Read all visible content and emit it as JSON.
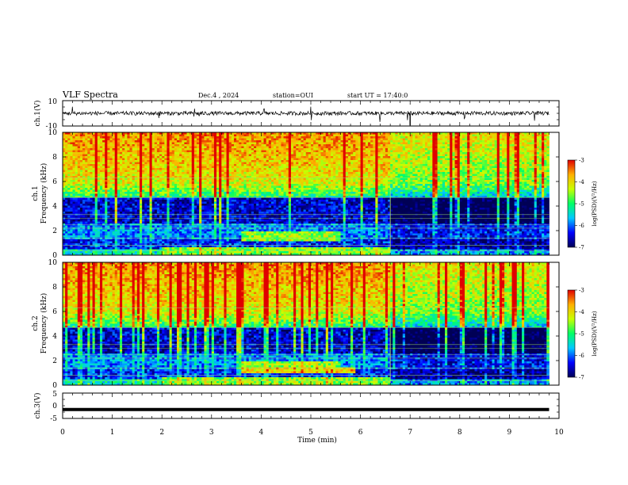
{
  "header": {
    "title": "VLF Spectra",
    "date": "Dec.4 , 2024",
    "station": "station=OUI",
    "start": "start UT = 17:40:0"
  },
  "panels": {
    "ch1_wave": {
      "ylabel": "ch.1(V)",
      "ticks": [
        "10",
        "-10"
      ]
    },
    "ch1_spec": {
      "ylabel_line1": "ch.1",
      "ylabel_line2": "Frequency (kHz)",
      "yticks": [
        "0",
        "2",
        "4",
        "6",
        "8",
        "10"
      ]
    },
    "ch2_spec": {
      "ylabel_line1": "ch.2",
      "ylabel_line2": "Frequency (kHz)",
      "yticks": [
        "0",
        "2",
        "4",
        "6",
        "8",
        "10"
      ]
    },
    "ch3_wave": {
      "ylabel": "ch.3(V)",
      "ticks": [
        "5",
        "0",
        "-5"
      ]
    },
    "xlabel": "Time (min)",
    "xticks": [
      "0",
      "1",
      "2",
      "3",
      "4",
      "5",
      "6",
      "7",
      "8",
      "9",
      "10"
    ]
  },
  "colorbar": {
    "label": "log(PSD)(V²/Hz)",
    "ticks": [
      "-3",
      "-4",
      "-5",
      "-6",
      "-7"
    ],
    "colors": [
      "#000055",
      "#0000ff",
      "#00c8ff",
      "#00ff66",
      "#c8ff00",
      "#ffb000",
      "#e00000",
      "#ffffff"
    ]
  },
  "chart_data": [
    {
      "type": "line",
      "title": "VLF Spectra",
      "ylabel": "ch.1(V)",
      "xlabel": "Time (min)",
      "xlim": [
        0,
        10
      ],
      "ylim": [
        -10,
        10
      ],
      "series": [
        {
          "x": [
            0,
            9.8
          ],
          "y": [
            0,
            0
          ]
        }
      ],
      "spikes_min": [
        0.2,
        1.95,
        2.65,
        2.75,
        4.05,
        5.0,
        6.4,
        6.95,
        7.0,
        8.1,
        8.3,
        9.5
      ]
    },
    {
      "type": "heatmap",
      "ylabel": "Frequency (kHz)",
      "xlim": [
        0,
        10
      ],
      "ylim": [
        0,
        10
      ],
      "data_extent_min": 9.8,
      "regime_change_min": 6.6,
      "clim": [
        -7,
        -3
      ],
      "colorbar_label": "log(PSD)(V²/Hz)"
    },
    {
      "type": "heatmap",
      "ylabel": "Frequency (kHz)",
      "xlim": [
        0,
        10
      ],
      "ylim": [
        0,
        10
      ],
      "data_extent_min": 9.8,
      "regime_change_min": 6.6,
      "clim": [
        -7,
        -3
      ],
      "colorbar_label": "log(PSD)(V²/Hz)"
    },
    {
      "type": "line",
      "ylabel": "ch.3(V)",
      "xlabel": "Time (min)",
      "xlim": [
        0,
        10
      ],
      "ylim": [
        -5,
        5
      ],
      "series": [
        {
          "x": [
            0,
            9.8
          ],
          "y": [
            -1.5,
            -1.5
          ]
        }
      ]
    }
  ]
}
